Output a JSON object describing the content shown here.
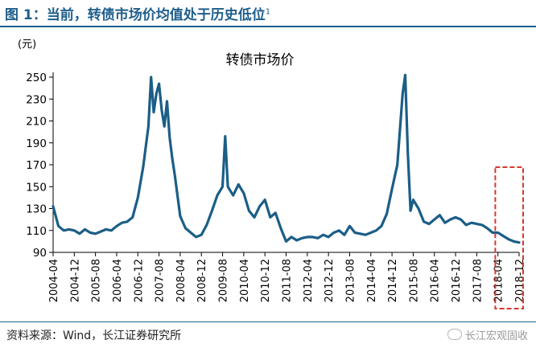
{
  "figure": {
    "title": "图 1：当前，转债市场价均值处于历史低位",
    "title_sup": "1",
    "source": "资料来源：Wind，长江证券研究所",
    "watermark": "长江宏观固收"
  },
  "colors": {
    "line": "#1b5e87",
    "title": "#1e5e8c",
    "highlight": "#d43a2f"
  },
  "chart_data": {
    "type": "line",
    "title": "转债市场价",
    "ylabel": "(元)",
    "xlabel": "",
    "ylim": [
      90,
      250
    ],
    "yticks": [
      90,
      110,
      130,
      150,
      170,
      190,
      210,
      230,
      250
    ],
    "grid": false,
    "legend": "none",
    "xticks": [
      "2004-04",
      "2004-12",
      "2005-08",
      "2006-04",
      "2006-12",
      "2007-08",
      "2008-04",
      "2008-12",
      "2009-08",
      "2010-04",
      "2010-12",
      "2011-08",
      "2012-04",
      "2012-12",
      "2013-08",
      "2014-04",
      "2014-12",
      "2015-08",
      "2016-04",
      "2016-12",
      "2017-08",
      "2018-04",
      "2018-12"
    ],
    "x_range": [
      "2004-04",
      "2018-12"
    ],
    "series": [
      {
        "x": [
          "2004-04",
          "2004-06",
          "2004-08",
          "2004-10",
          "2004-12",
          "2005-02",
          "2005-04",
          "2005-06",
          "2005-08",
          "2005-10",
          "2005-12",
          "2006-02",
          "2006-04",
          "2006-06",
          "2006-08",
          "2006-10",
          "2006-12",
          "2007-02",
          "2007-04",
          "2007-05",
          "2007-06",
          "2007-07",
          "2007-08",
          "2007-09",
          "2007-10",
          "2007-11",
          "2007-12",
          "2008-01",
          "2008-02",
          "2008-04",
          "2008-06",
          "2008-08",
          "2008-10",
          "2008-12",
          "2009-02",
          "2009-04",
          "2009-06",
          "2009-08",
          "2009-09",
          "2009-10",
          "2009-12",
          "2010-02",
          "2010-04",
          "2010-06",
          "2010-08",
          "2010-10",
          "2010-12",
          "2011-02",
          "2011-04",
          "2011-06",
          "2011-08",
          "2011-10",
          "2011-12",
          "2012-02",
          "2012-04",
          "2012-06",
          "2012-08",
          "2012-10",
          "2012-12",
          "2013-02",
          "2013-04",
          "2013-06",
          "2013-08",
          "2013-10",
          "2013-12",
          "2014-02",
          "2014-04",
          "2014-06",
          "2014-08",
          "2014-10",
          "2014-12",
          "2015-02",
          "2015-04",
          "2015-05",
          "2015-06",
          "2015-07",
          "2015-08",
          "2015-10",
          "2015-12",
          "2016-02",
          "2016-04",
          "2016-06",
          "2016-08",
          "2016-10",
          "2016-12",
          "2017-02",
          "2017-04",
          "2017-06",
          "2017-08",
          "2017-10",
          "2017-12",
          "2018-02",
          "2018-04",
          "2018-06",
          "2018-08",
          "2018-10",
          "2018-12"
        ],
        "y": [
          132,
          114,
          110,
          111,
          110,
          107,
          111,
          108,
          107,
          109,
          111,
          110,
          114,
          117,
          118,
          122,
          140,
          168,
          205,
          250,
          218,
          235,
          244,
          220,
          205,
          228,
          195,
          176,
          160,
          123,
          112,
          108,
          104,
          106,
          115,
          128,
          142,
          150,
          196,
          150,
          142,
          152,
          144,
          128,
          122,
          132,
          138,
          122,
          126,
          112,
          100,
          104,
          101,
          103,
          104,
          104,
          103,
          106,
          104,
          108,
          110,
          106,
          114,
          108,
          107,
          106,
          108,
          110,
          114,
          125,
          148,
          170,
          235,
          252,
          180,
          128,
          138,
          130,
          118,
          116,
          120,
          124,
          117,
          120,
          122,
          120,
          115,
          117,
          116,
          115,
          112,
          108,
          108,
          105,
          102,
          100,
          99
        ]
      }
    ],
    "highlight_box": {
      "from": "2018-03",
      "to": "2018-12"
    }
  }
}
